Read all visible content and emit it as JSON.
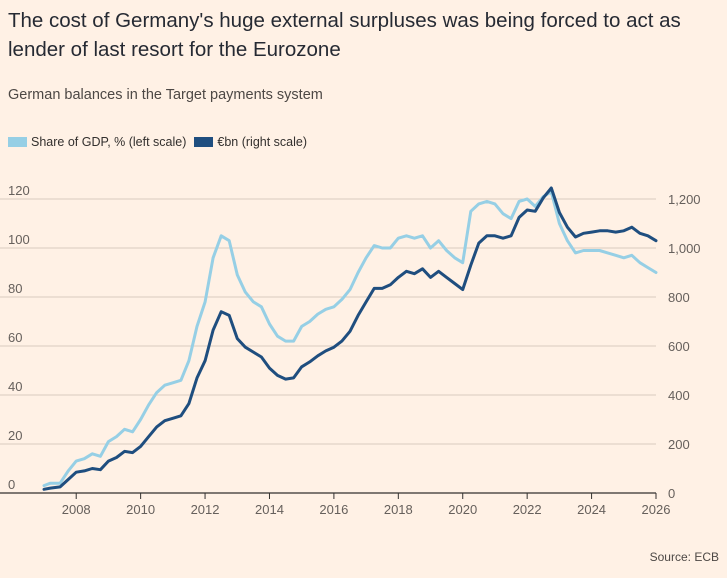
{
  "title": "The cost of Germany's huge external surpluses was being forced to act as lender of last resort for the Eurozone",
  "subtitle": "German balances in the Target payments system",
  "source": "Source: ECB",
  "colors": {
    "background": "#FFF1E5",
    "share_gdp": "#96CFE5",
    "eur_bn": "#1F4E7F",
    "grid": "#D8CCC0",
    "axis": "#33302E"
  },
  "chart_data": {
    "type": "line",
    "xlabel": "",
    "ylabel_left": "",
    "ylabel_right": "",
    "xlim": [
      2007,
      2026
    ],
    "ylim_left": [
      0,
      120
    ],
    "ylim_right": [
      0,
      1200
    ],
    "grid": true,
    "legend_position": "top-left",
    "x_ticks": [
      "2008",
      "2010",
      "2012",
      "2014",
      "2016",
      "2018",
      "2020",
      "2022",
      "2024",
      "2026"
    ],
    "y_ticks_left": [
      "0",
      "20",
      "40",
      "60",
      "80",
      "100",
      "120"
    ],
    "y_ticks_right": [
      "0",
      "200",
      "400",
      "600",
      "800",
      "1,000",
      "1,200"
    ],
    "series": [
      {
        "name": "Share of GDP, % (left scale)",
        "axis": "left",
        "x": [
          2007.0,
          2007.2,
          2007.5,
          2007.75,
          2008.0,
          2008.25,
          2008.5,
          2008.75,
          2009.0,
          2009.25,
          2009.5,
          2009.75,
          2010.0,
          2010.25,
          2010.5,
          2010.75,
          2011.0,
          2011.25,
          2011.5,
          2011.75,
          2012.0,
          2012.25,
          2012.5,
          2012.75,
          2013.0,
          2013.25,
          2013.5,
          2013.75,
          2014.0,
          2014.25,
          2014.5,
          2014.75,
          2015.0,
          2015.25,
          2015.5,
          2015.75,
          2016.0,
          2016.25,
          2016.5,
          2016.75,
          2017.0,
          2017.25,
          2017.5,
          2017.75,
          2018.0,
          2018.25,
          2018.5,
          2018.75,
          2019.0,
          2019.25,
          2019.5,
          2019.75,
          2020.0,
          2020.25,
          2020.5,
          2020.75,
          2021.0,
          2021.25,
          2021.5,
          2021.75,
          2022.0,
          2022.25,
          2022.5,
          2022.75,
          2023.0,
          2023.25,
          2023.5,
          2023.75,
          2024.0,
          2024.25,
          2024.5,
          2024.75,
          2025.0,
          2025.25,
          2025.5,
          2025.75,
          2026.0
        ],
        "values": [
          3,
          4,
          4,
          9,
          13,
          14,
          16,
          15,
          21,
          23,
          26,
          25,
          30,
          36,
          41,
          44,
          45,
          46,
          54,
          68,
          78,
          96,
          105,
          103,
          89,
          82,
          78,
          76,
          69,
          64,
          62,
          62,
          68,
          70,
          73,
          75,
          76,
          79,
          83,
          90,
          96,
          101,
          100,
          100,
          104,
          105,
          104,
          105,
          100,
          103,
          99,
          96,
          94,
          115,
          118,
          119,
          118,
          114,
          112,
          119,
          120,
          117,
          121,
          123,
          110,
          103,
          98,
          99,
          99,
          99,
          98,
          97,
          96,
          97,
          94,
          92,
          90
        ]
      },
      {
        "name": "€bn (right scale)",
        "axis": "right",
        "x": [
          2007.0,
          2007.2,
          2007.5,
          2007.75,
          2008.0,
          2008.25,
          2008.5,
          2008.75,
          2009.0,
          2009.25,
          2009.5,
          2009.75,
          2010.0,
          2010.25,
          2010.5,
          2010.75,
          2011.0,
          2011.25,
          2011.5,
          2011.75,
          2012.0,
          2012.25,
          2012.5,
          2012.75,
          2013.0,
          2013.25,
          2013.5,
          2013.75,
          2014.0,
          2014.25,
          2014.5,
          2014.75,
          2015.0,
          2015.25,
          2015.5,
          2015.75,
          2016.0,
          2016.25,
          2016.5,
          2016.75,
          2017.0,
          2017.25,
          2017.5,
          2017.75,
          2018.0,
          2018.25,
          2018.5,
          2018.75,
          2019.0,
          2019.25,
          2019.5,
          2019.75,
          2020.0,
          2020.25,
          2020.5,
          2020.75,
          2021.0,
          2021.25,
          2021.5,
          2021.75,
          2022.0,
          2022.25,
          2022.5,
          2022.75,
          2023.0,
          2023.25,
          2023.5,
          2023.75,
          2024.0,
          2024.25,
          2024.5,
          2024.75,
          2025.0,
          2025.25,
          2025.5,
          2025.75,
          2026.0
        ],
        "values": [
          15,
          20,
          25,
          55,
          85,
          90,
          100,
          95,
          130,
          145,
          170,
          165,
          190,
          230,
          270,
          295,
          305,
          315,
          365,
          470,
          540,
          665,
          740,
          725,
          630,
          595,
          575,
          555,
          510,
          480,
          465,
          470,
          515,
          535,
          560,
          580,
          595,
          620,
          660,
          725,
          780,
          835,
          835,
          850,
          880,
          905,
          895,
          915,
          880,
          905,
          880,
          855,
          830,
          930,
          1020,
          1050,
          1050,
          1040,
          1050,
          1125,
          1155,
          1150,
          1205,
          1245,
          1145,
          1085,
          1045,
          1060,
          1065,
          1070,
          1070,
          1065,
          1070,
          1085,
          1060,
          1050,
          1030
        ]
      }
    ]
  }
}
